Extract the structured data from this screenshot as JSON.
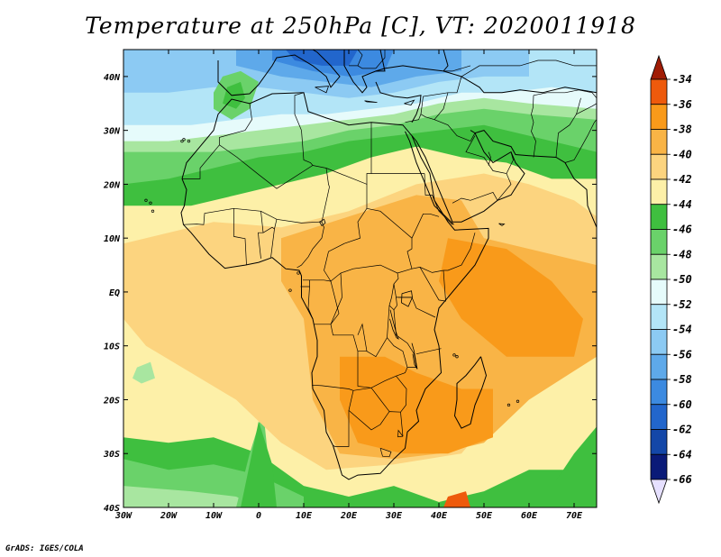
{
  "title": "Temperature at 250hPa [C], VT: 2020011918",
  "credit": "GrADS: IGES/COLA",
  "map": {
    "lon_range": [
      -30,
      75
    ],
    "lat_range": [
      -40,
      45
    ],
    "x_ticks": [
      {
        "lon": -30,
        "label": "30W"
      },
      {
        "lon": -20,
        "label": "20W"
      },
      {
        "lon": -10,
        "label": "10W"
      },
      {
        "lon": 0,
        "label": "0"
      },
      {
        "lon": 10,
        "label": "10E"
      },
      {
        "lon": 20,
        "label": "20E"
      },
      {
        "lon": 30,
        "label": "30E"
      },
      {
        "lon": 40,
        "label": "40E"
      },
      {
        "lon": 50,
        "label": "50E"
      },
      {
        "lon": 60,
        "label": "60E"
      },
      {
        "lon": 70,
        "label": "70E"
      }
    ],
    "y_ticks": [
      {
        "lat": 40,
        "label": "40N"
      },
      {
        "lat": 30,
        "label": "30N"
      },
      {
        "lat": 20,
        "label": "20N"
      },
      {
        "lat": 10,
        "label": "10N"
      },
      {
        "lat": 0,
        "label": "EQ"
      },
      {
        "lat": -10,
        "label": "10S"
      },
      {
        "lat": -20,
        "label": "20S"
      },
      {
        "lat": -30,
        "label": "30S"
      },
      {
        "lat": -40,
        "label": "40S"
      }
    ]
  },
  "colorbar": {
    "labels": [
      "-34",
      "-36",
      "-38",
      "-40",
      "-42",
      "-44",
      "-46",
      "-48",
      "-50",
      "-52",
      "-54",
      "-56",
      "-58",
      "-60",
      "-62",
      "-64",
      "-66"
    ],
    "colors": [
      "#a01c05",
      "#ee5a0c",
      "#f99a1a",
      "#f9b446",
      "#fcd47f",
      "#fdf0a8",
      "#3fbf3f",
      "#6ad26a",
      "#a8e6a0",
      "#e6fbfb",
      "#b3e5f7",
      "#8ccaf3",
      "#5ea9ea",
      "#3c8ae0",
      "#2266cc",
      "#1447a8",
      "#0a1a78",
      "#e6e0ff"
    ]
  },
  "colors": {
    "ocean_default": "#fdf0a8",
    "coastline": "#000000"
  }
}
